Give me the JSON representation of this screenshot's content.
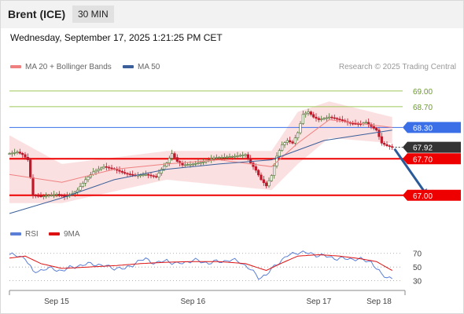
{
  "header": {
    "instrument": "Brent (ICE)",
    "timeframe": "30 MIN"
  },
  "timestamp": "Wednesday, September 17, 2025 1:21:25 PM CET",
  "legend": {
    "ma20_label": "MA 20 + Bollinger Bands",
    "ma50_label": "MA 50",
    "credit": "Research © 2025 Trading Central"
  },
  "rsi_legend": {
    "rsi_label": "RSI",
    "ma_label": "9MA"
  },
  "colors": {
    "bull_candle": "#4a6e2f",
    "bear_candle": "#c0182a",
    "bollinger_fill": "#f7c6c9",
    "ma20": "#f08080",
    "ma50": "#3a5f9a",
    "resistance_green": "#9ec85a",
    "level_blue": "#3a6fe8",
    "level_red": "#ee0000",
    "current_price_bg": "#333333",
    "rsi": "#5b7fd6",
    "rsi_ma": "#dd1111"
  },
  "chart_data": [
    {
      "type": "candlestick",
      "title": "Brent (ICE)",
      "xlabel": "",
      "ylabel": "",
      "x_ticks": [
        "Sep 15",
        "Sep 16",
        "Sep 17",
        "Sep 18"
      ],
      "ylim": [
        66.5,
        69.3
      ],
      "grid": false,
      "close_path": [
        [
          0,
          67.8
        ],
        [
          3,
          67.83
        ],
        [
          5,
          67.78
        ],
        [
          7,
          67.68
        ],
        [
          9,
          67.0
        ],
        [
          12,
          66.98
        ],
        [
          15,
          67.0
        ],
        [
          18,
          67.02
        ],
        [
          21,
          66.97
        ],
        [
          24,
          67.03
        ],
        [
          26,
          67.1
        ],
        [
          29,
          67.3
        ],
        [
          32,
          67.45
        ],
        [
          36,
          67.55
        ],
        [
          40,
          67.5
        ],
        [
          44,
          67.42
        ],
        [
          48,
          67.38
        ],
        [
          52,
          67.4
        ],
        [
          56,
          67.35
        ],
        [
          58,
          67.5
        ],
        [
          60,
          67.62
        ],
        [
          62,
          67.8
        ],
        [
          64,
          67.65
        ],
        [
          66,
          67.58
        ],
        [
          70,
          67.6
        ],
        [
          74,
          67.64
        ],
        [
          78,
          67.72
        ],
        [
          82,
          67.73
        ],
        [
          86,
          67.75
        ],
        [
          90,
          67.78
        ],
        [
          92,
          67.62
        ],
        [
          94,
          67.48
        ],
        [
          96,
          67.3
        ],
        [
          98,
          67.18
        ],
        [
          100,
          67.38
        ],
        [
          102,
          67.75
        ],
        [
          104,
          67.97
        ],
        [
          106,
          68.05
        ],
        [
          108,
          68.0
        ],
        [
          110,
          68.2
        ],
        [
          112,
          68.55
        ],
        [
          114,
          68.6
        ],
        [
          116,
          68.5
        ],
        [
          118,
          68.45
        ],
        [
          122,
          68.5
        ],
        [
          126,
          68.45
        ],
        [
          130,
          68.38
        ],
        [
          134,
          68.37
        ],
        [
          136,
          68.4
        ],
        [
          138,
          68.32
        ],
        [
          140,
          68.25
        ],
        [
          142,
          68.0
        ],
        [
          144,
          67.95
        ],
        [
          146,
          67.92
        ]
      ],
      "bollinger": {
        "upper_at": [
          [
            0,
            68.15
          ],
          [
            20,
            67.6
          ],
          [
            60,
            67.85
          ],
          [
            100,
            67.85
          ],
          [
            110,
            68.6
          ],
          [
            122,
            68.8
          ],
          [
            146,
            68.5
          ]
        ],
        "lower_at": [
          [
            0,
            66.85
          ],
          [
            20,
            66.85
          ],
          [
            60,
            67.3
          ],
          [
            100,
            67.1
          ],
          [
            110,
            67.6
          ],
          [
            122,
            68.1
          ],
          [
            146,
            68.0
          ]
        ]
      },
      "ma20_at": [
        [
          0,
          67.4
        ],
        [
          20,
          67.25
        ],
        [
          40,
          67.5
        ],
        [
          60,
          67.6
        ],
        [
          80,
          67.68
        ],
        [
          100,
          67.55
        ],
        [
          110,
          68.0
        ],
        [
          122,
          68.45
        ],
        [
          146,
          68.3
        ]
      ],
      "ma50_at": [
        [
          0,
          66.65
        ],
        [
          20,
          66.95
        ],
        [
          40,
          67.3
        ],
        [
          60,
          67.5
        ],
        [
          80,
          67.6
        ],
        [
          100,
          67.68
        ],
        [
          120,
          68.05
        ],
        [
          146,
          68.25
        ]
      ],
      "levels": [
        {
          "value": 69.0,
          "label": "69.00",
          "kind": "resistance"
        },
        {
          "value": 68.7,
          "label": "68.70",
          "kind": "resistance"
        },
        {
          "value": 68.3,
          "label": "68.30",
          "kind": "pivot"
        },
        {
          "value": 67.92,
          "label": "67.92",
          "kind": "current"
        },
        {
          "value": 67.7,
          "label": "67.70",
          "kind": "support"
        },
        {
          "value": 67.0,
          "label": "67.00",
          "kind": "support"
        }
      ],
      "projection": {
        "from": [
          146,
          67.92
        ],
        "to": [
          158,
          67.0
        ]
      }
    },
    {
      "type": "line",
      "title": "",
      "ylim": [
        25,
        80
      ],
      "y_ticks": [
        {
          "value": 70,
          "label": "70"
        },
        {
          "value": 50,
          "label": "50"
        },
        {
          "value": 30,
          "label": "30"
        }
      ],
      "series": [
        {
          "name": "RSI",
          "points": [
            [
              0,
              68
            ],
            [
              6,
              64
            ],
            [
              9,
              42
            ],
            [
              14,
              48
            ],
            [
              20,
              45
            ],
            [
              26,
              52
            ],
            [
              32,
              55
            ],
            [
              38,
              50
            ],
            [
              44,
              47
            ],
            [
              48,
              56
            ],
            [
              52,
              62
            ],
            [
              56,
              55
            ],
            [
              60,
              60
            ],
            [
              64,
              54
            ],
            [
              70,
              60
            ],
            [
              76,
              56
            ],
            [
              84,
              60
            ],
            [
              88,
              58
            ],
            [
              92,
              46
            ],
            [
              95,
              35
            ],
            [
              98,
              38
            ],
            [
              102,
              55
            ],
            [
              106,
              66
            ],
            [
              110,
              72
            ],
            [
              114,
              70
            ],
            [
              120,
              66
            ],
            [
              126,
              62
            ],
            [
              132,
              62
            ],
            [
              138,
              58
            ],
            [
              142,
              38
            ],
            [
              146,
              34
            ]
          ]
        },
        {
          "name": "9MA",
          "points": [
            [
              0,
              63
            ],
            [
              6,
              66
            ],
            [
              12,
              55
            ],
            [
              20,
              48
            ],
            [
              30,
              50
            ],
            [
              40,
              52
            ],
            [
              50,
              55
            ],
            [
              60,
              57
            ],
            [
              70,
              58
            ],
            [
              80,
              58
            ],
            [
              90,
              55
            ],
            [
              98,
              45
            ],
            [
              104,
              56
            ],
            [
              110,
              66
            ],
            [
              118,
              68
            ],
            [
              126,
              66
            ],
            [
              134,
              62
            ],
            [
              140,
              58
            ],
            [
              146,
              45
            ]
          ]
        }
      ]
    }
  ]
}
